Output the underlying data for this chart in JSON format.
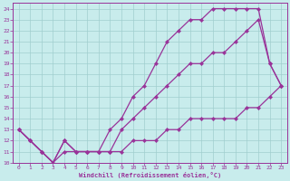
{
  "xlabel": "Windchill (Refroidissement éolien,°C)",
  "xlim": [
    -0.5,
    23.5
  ],
  "ylim": [
    10,
    24.5
  ],
  "xticks": [
    0,
    1,
    2,
    3,
    4,
    5,
    6,
    7,
    8,
    9,
    10,
    11,
    12,
    13,
    14,
    15,
    16,
    17,
    18,
    19,
    20,
    21,
    22,
    23
  ],
  "yticks": [
    10,
    11,
    12,
    13,
    14,
    15,
    16,
    17,
    18,
    19,
    20,
    21,
    22,
    23,
    24
  ],
  "bg_color": "#c8ecec",
  "grid_color": "#a0cece",
  "line_color": "#993399",
  "line_width": 0.9,
  "marker": "D",
  "marker_size": 2.2,
  "curves": [
    {
      "x": [
        0,
        1,
        2,
        3,
        4,
        5,
        6,
        7,
        8,
        9,
        10,
        11,
        12,
        13,
        14,
        15,
        16,
        17,
        18,
        19,
        20,
        21,
        22,
        23
      ],
      "y": [
        13,
        12,
        11,
        10,
        11,
        11,
        11,
        11,
        11,
        11,
        12,
        12,
        12,
        13,
        13,
        14,
        14,
        14,
        14,
        14,
        15,
        15,
        16,
        17
      ]
    },
    {
      "x": [
        0,
        1,
        2,
        3,
        4,
        5,
        6,
        7,
        8,
        9,
        10,
        11,
        12,
        13,
        14,
        15,
        16,
        17,
        18,
        19,
        20,
        21,
        22,
        23
      ],
      "y": [
        13,
        12,
        11,
        10,
        12,
        11,
        11,
        11,
        11,
        13,
        14,
        15,
        16,
        17,
        18,
        19,
        19,
        20,
        20,
        21,
        22,
        23,
        19,
        17
      ]
    },
    {
      "x": [
        0,
        1,
        2,
        3,
        4,
        5,
        6,
        7,
        8,
        9,
        10,
        11,
        12,
        13,
        14,
        15,
        16,
        17,
        18,
        19,
        20,
        21,
        22,
        23
      ],
      "y": [
        13,
        12,
        11,
        10,
        12,
        11,
        11,
        11,
        13,
        14,
        16,
        17,
        19,
        21,
        22,
        23,
        23,
        24,
        24,
        24,
        24,
        24,
        19,
        17
      ]
    }
  ]
}
